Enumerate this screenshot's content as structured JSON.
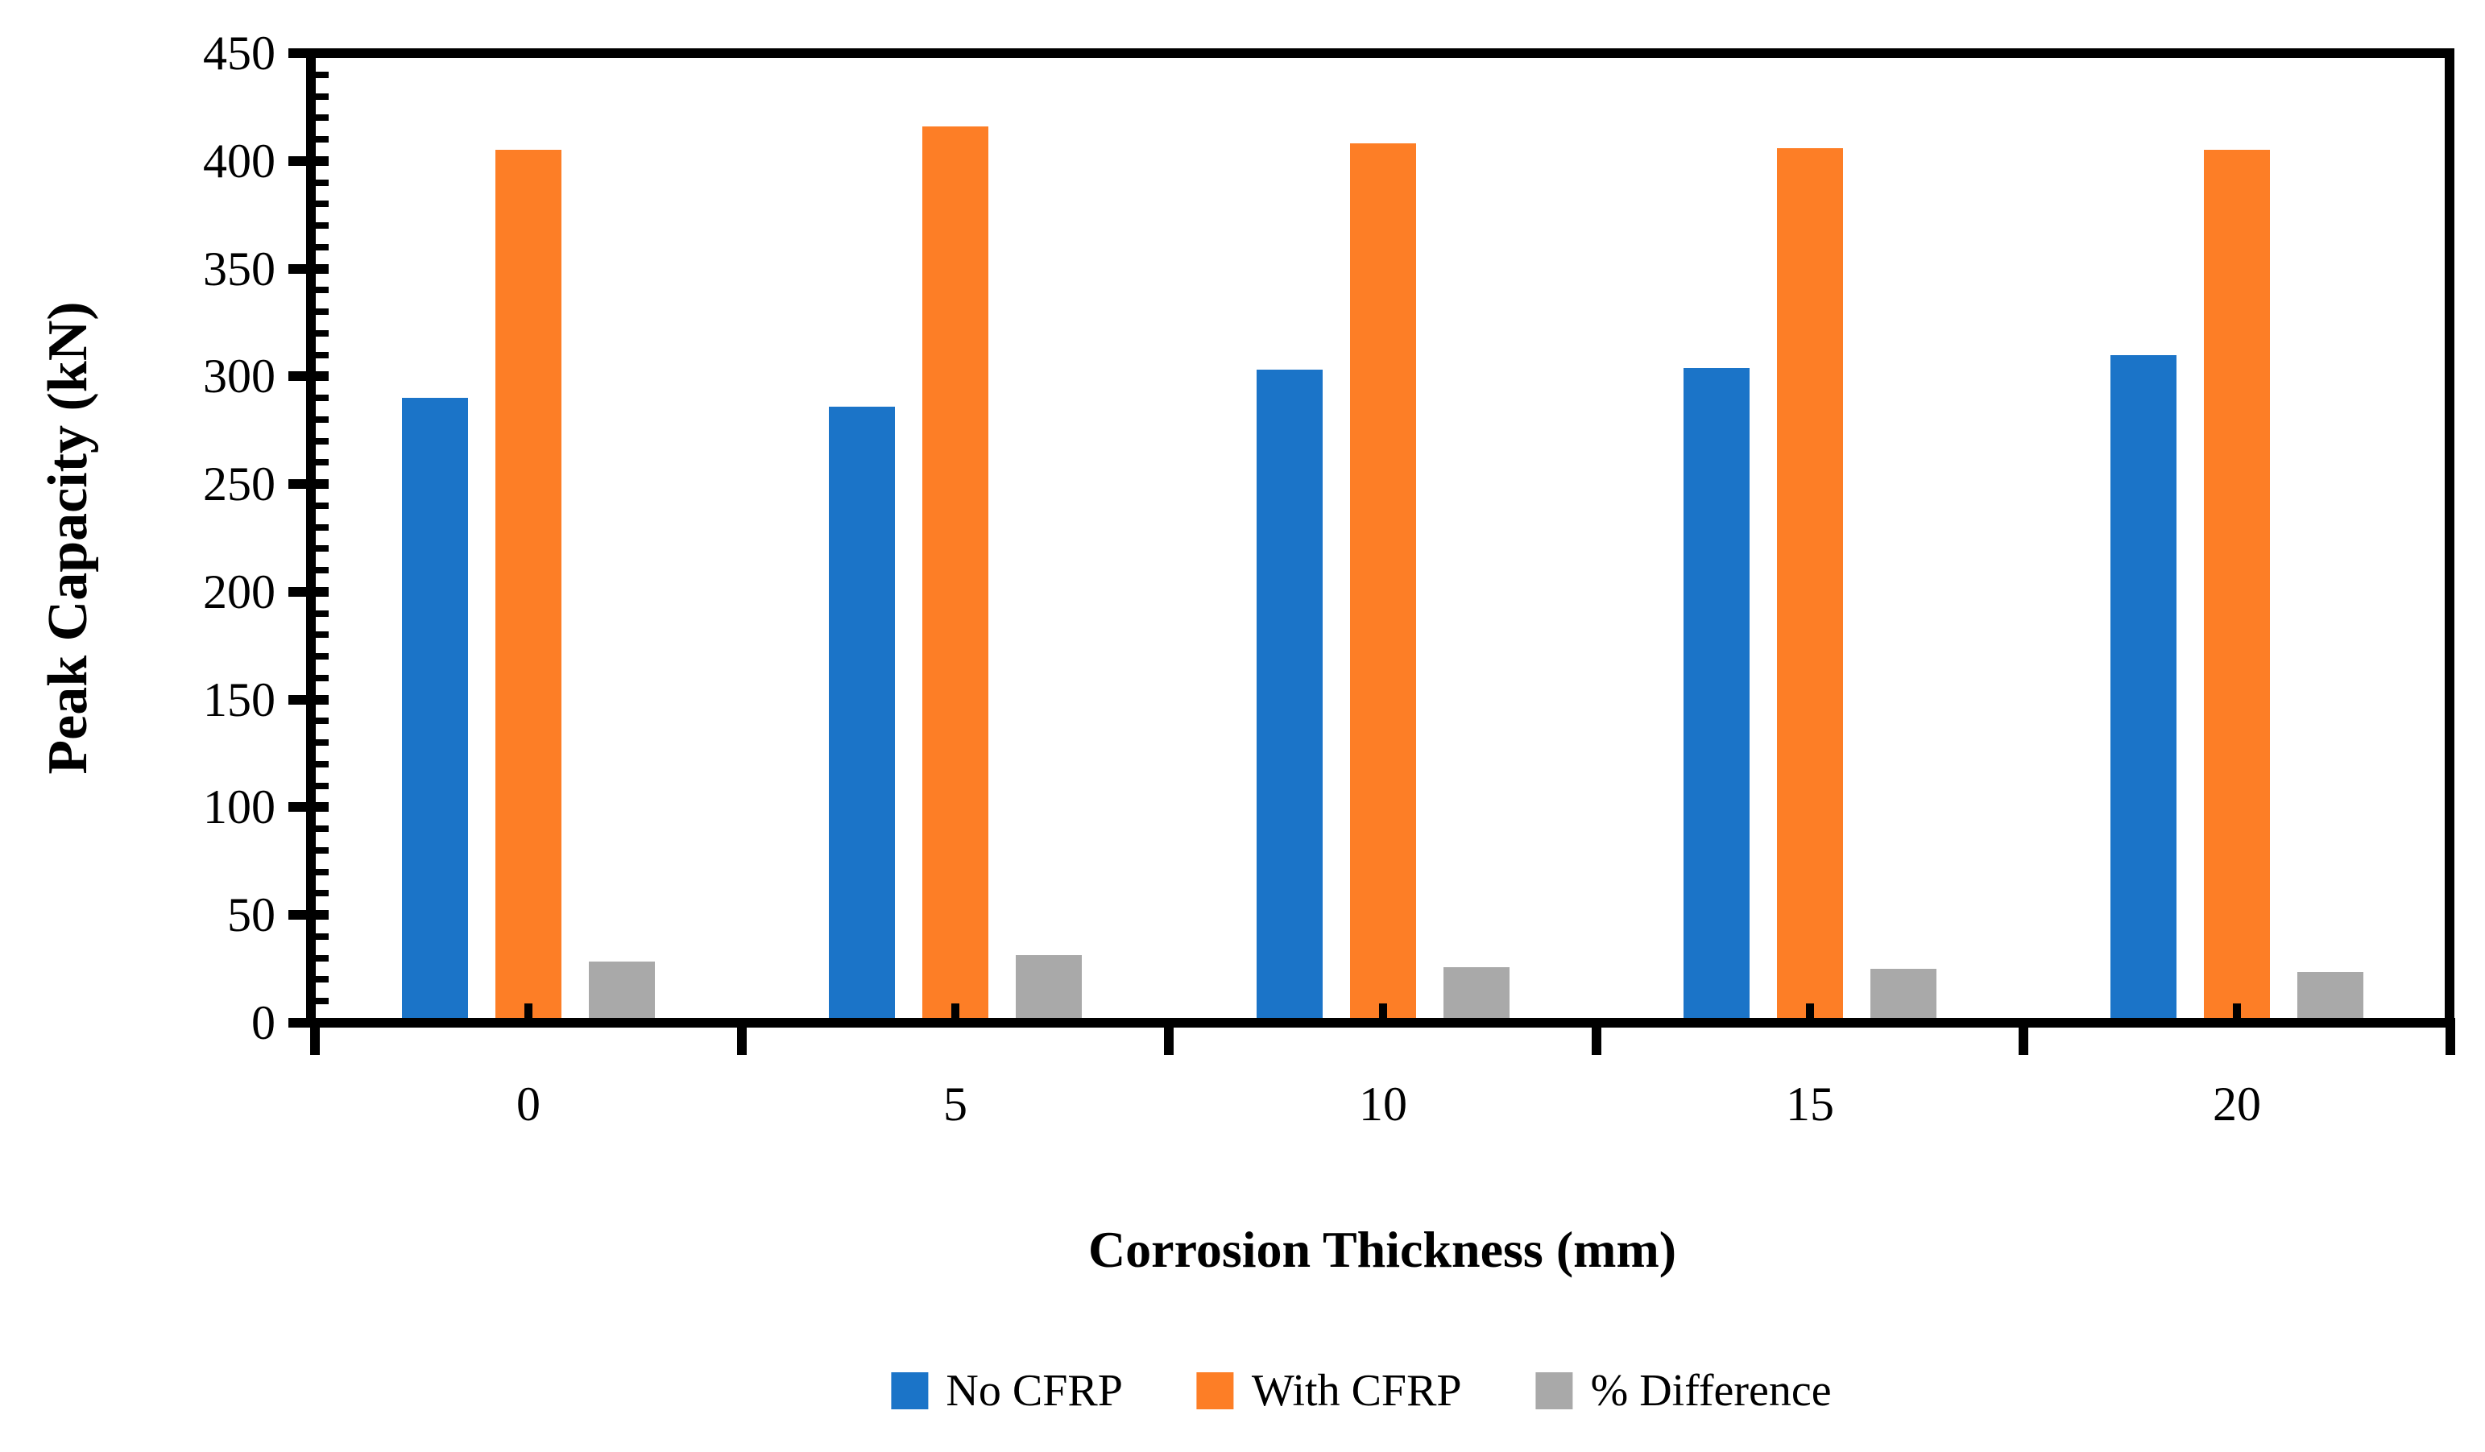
{
  "chart_data": {
    "type": "bar",
    "title": "",
    "categories": [
      "0",
      "5",
      "10",
      "15",
      "20"
    ],
    "series": [
      {
        "name": "No CFRP",
        "color": "#1B74C8",
        "values": [
          290,
          286,
          303,
          304,
          310
        ]
      },
      {
        "name": "With CFRP",
        "color": "#FD7E26",
        "values": [
          405,
          416,
          408,
          406,
          405
        ]
      },
      {
        "name": "% Difference",
        "color": "#A9A9A9",
        "values": [
          28.4,
          31.3,
          25.7,
          25.1,
          23.5
        ]
      }
    ],
    "xlabel": "Corrosion Thickness (mm)",
    "ylabel": "Peak Capacity (kN)",
    "ylim": [
      0,
      450
    ],
    "y_major_step": 50,
    "y_minor_step": 10,
    "y_tick_labels": [
      "0",
      "50",
      "100",
      "150",
      "200",
      "250",
      "300",
      "350",
      "400",
      "450"
    ],
    "grid": false,
    "legend_position": "bottom",
    "axis_color": "#000000",
    "background": "#FFFFFF"
  }
}
